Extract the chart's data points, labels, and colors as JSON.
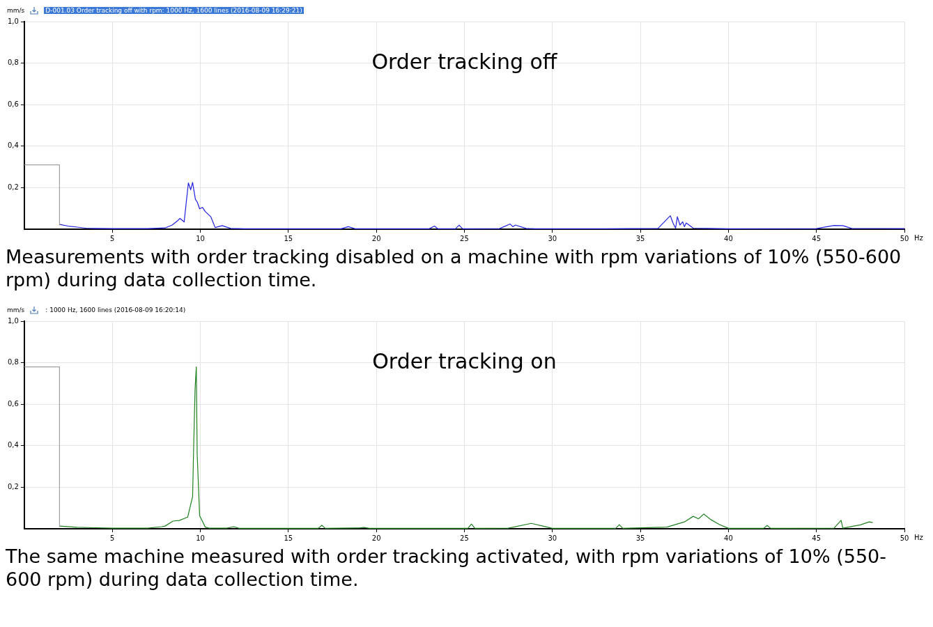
{
  "chart_data": [
    {
      "type": "line",
      "title": "Order tracking off",
      "subtitle": "D-001.03  Order tracking off with rpm: 1000 Hz, 1600 lines (2016-08-09 16:29:21)",
      "xlabel": "Hz",
      "ylabel": "mm/s",
      "xlim": [
        0,
        50
      ],
      "ylim": [
        0,
        1
      ],
      "xticks": [
        5,
        10,
        15,
        20,
        25,
        30,
        35,
        40,
        45,
        50
      ],
      "yticks": [
        {
          "value": 0.2,
          "label": "0,2"
        },
        {
          "value": 0.4,
          "label": "0,4"
        },
        {
          "value": 0.6,
          "label": "0,6"
        },
        {
          "value": 0.8,
          "label": "0,8"
        },
        {
          "value": 1,
          "label": "1,0"
        }
      ],
      "grid": true,
      "marker": "none",
      "line_style": "solid",
      "annotations": [
        "Measurements with order tracking disabled on a machine with rpm variations of 10% (550-600 rpm) during data collection time."
      ],
      "series": [
        {
          "color": "#a0a0a0",
          "x": [
            0,
            2,
            2
          ],
          "values": [
            0.31,
            0.31,
            0.02
          ]
        },
        {
          "color": "#2020e0",
          "x": [
            2,
            2.5,
            3,
            3.5,
            4,
            5,
            6,
            7,
            8,
            8.4,
            8.7,
            8.84,
            9.08,
            9.32,
            9.45,
            9.56,
            9.72,
            9.83,
            9.96,
            10.12,
            10.28,
            10.6,
            10.84,
            11.24,
            11.72,
            12.5,
            15,
            18,
            18.4,
            18.8,
            23,
            23.3,
            23.5,
            24.5,
            24.7,
            24.9,
            27,
            27.6,
            27.75,
            27.9,
            28.5,
            29,
            33,
            36,
            36.7,
            36.85,
            37,
            37.1,
            37.25,
            37.4,
            37.5,
            37.6,
            38,
            40,
            45,
            46,
            46.5,
            47,
            50
          ],
          "values": [
            0.023,
            0.015,
            0.01,
            0.005,
            0.004,
            0.003,
            0.003,
            0.003,
            0.006,
            0.02,
            0.04,
            0.052,
            0.035,
            0.223,
            0.19,
            0.225,
            0.144,
            0.13,
            0.098,
            0.105,
            0.085,
            0.059,
            0.008,
            0.017,
            0.004,
            0.002,
            0.002,
            0.002,
            0.012,
            0.002,
            0.002,
            0.015,
            0.002,
            0.002,
            0.02,
            0.002,
            0.003,
            0.025,
            0.012,
            0.02,
            0.004,
            0.002,
            0.002,
            0.004,
            0.065,
            0.03,
            0.005,
            0.06,
            0.02,
            0.036,
            0.012,
            0.03,
            0.005,
            0.002,
            0.003,
            0.018,
            0.017,
            0.004,
            0.003
          ]
        }
      ]
    },
    {
      "type": "line",
      "title": "Order tracking on",
      "subtitle": ": 1000 Hz, 1600 lines (2016-08-09 16:20:14)",
      "xlabel": "Hz",
      "ylabel": "mm/s",
      "xlim": [
        0,
        50
      ],
      "ylim": [
        0,
        1
      ],
      "xticks": [
        5,
        10,
        15,
        20,
        25,
        30,
        35,
        40,
        45,
        50
      ],
      "yticks": [
        {
          "value": 0.2,
          "label": "0,2"
        },
        {
          "value": 0.4,
          "label": "0,4"
        },
        {
          "value": 0.6,
          "label": "0,6"
        },
        {
          "value": 0.8,
          "label": "0,8"
        },
        {
          "value": 1,
          "label": "1,0"
        }
      ],
      "grid": true,
      "marker": "none",
      "line_style": "solid",
      "annotations": [
        "The same machine measured with order tracking activated, with rpm variations of 10% (550-600 rpm) during data collection time."
      ],
      "series": [
        {
          "color": "#a0a0a0",
          "x": [
            0,
            2,
            2
          ],
          "values": [
            0.78,
            0.78,
            0.01
          ]
        },
        {
          "color": "#208020",
          "x": [
            2,
            3,
            4,
            5,
            6,
            7,
            7.8,
            8,
            8.44,
            8.8,
            9.28,
            9.56,
            9.62,
            9.7,
            9.77,
            9.82,
            9.96,
            10.28,
            10.5,
            11.5,
            11.9,
            12.2,
            16.7,
            16.9,
            17.1,
            19,
            19.3,
            19.6,
            25.2,
            25.4,
            25.6,
            27.5,
            28.8,
            29.5,
            30,
            33.6,
            33.8,
            34,
            36.5,
            37.5,
            38,
            38.3,
            38.6,
            39,
            39.5,
            40,
            42,
            42.2,
            42.4,
            46,
            46.4,
            46.5,
            47.5,
            48,
            48.2
          ],
          "values": [
            0.013,
            0.007,
            0.005,
            0.003,
            0.003,
            0.003,
            0.01,
            0.013,
            0.037,
            0.04,
            0.056,
            0.155,
            0.39,
            0.67,
            0.78,
            0.36,
            0.063,
            0.008,
            0.003,
            0.003,
            0.01,
            0.002,
            0.002,
            0.017,
            0.002,
            0.004,
            0.006,
            0.002,
            0.002,
            0.023,
            0.002,
            0.003,
            0.026,
            0.012,
            0.002,
            0.002,
            0.02,
            0.002,
            0.008,
            0.033,
            0.06,
            0.048,
            0.071,
            0.044,
            0.02,
            0.002,
            0.002,
            0.016,
            0.002,
            0.003,
            0.041,
            0.003,
            0.019,
            0.033,
            0.03
          ]
        }
      ]
    }
  ]
}
